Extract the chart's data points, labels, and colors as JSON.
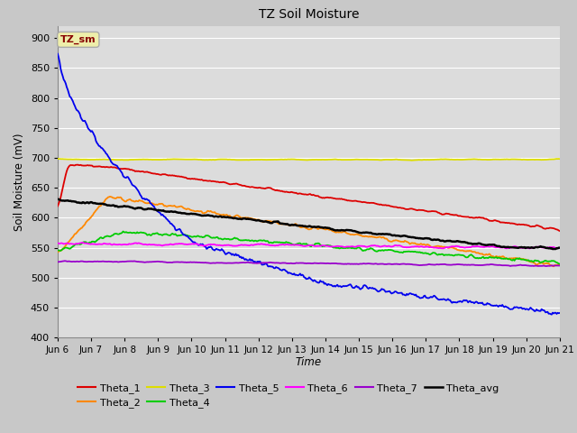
{
  "title": "TZ Soil Moisture",
  "xlabel": "Time",
  "ylabel": "Soil Moisture (mV)",
  "ylim": [
    400,
    920
  ],
  "yticks": [
    400,
    450,
    500,
    550,
    600,
    650,
    700,
    750,
    800,
    850,
    900
  ],
  "fig_bg_color": "#c8c8c8",
  "plot_bg_color": "#dcdcdc",
  "grid_color": "#ffffff",
  "series_colors": {
    "Theta_1": "#dd0000",
    "Theta_2": "#ff8800",
    "Theta_3": "#dddd00",
    "Theta_4": "#00cc00",
    "Theta_5": "#0000ee",
    "Theta_6": "#ff00ff",
    "Theta_7": "#9900cc",
    "Theta_avg": "#000000"
  },
  "legend_label": "TZ_sm",
  "legend_label_color": "#880000",
  "legend_box_facecolor": "#eeeeaa",
  "legend_box_edgecolor": "#aaaaaa",
  "n_points": 500,
  "x_start": 6.0,
  "x_end": 21.0,
  "xtick_labels": [
    "Jun 6",
    "Jun 7",
    "Jun 8",
    "Jun 9",
    "Jun 10",
    "Jun 11",
    "Jun 12",
    "Jun 13",
    "Jun 14",
    "Jun 15",
    "Jun 16",
    "Jun 17",
    "Jun 18",
    "Jun 19",
    "Jun 20",
    "Jun 21"
  ],
  "xtick_positions": [
    6,
    7,
    8,
    9,
    10,
    11,
    12,
    13,
    14,
    15,
    16,
    17,
    18,
    19,
    20,
    21
  ]
}
